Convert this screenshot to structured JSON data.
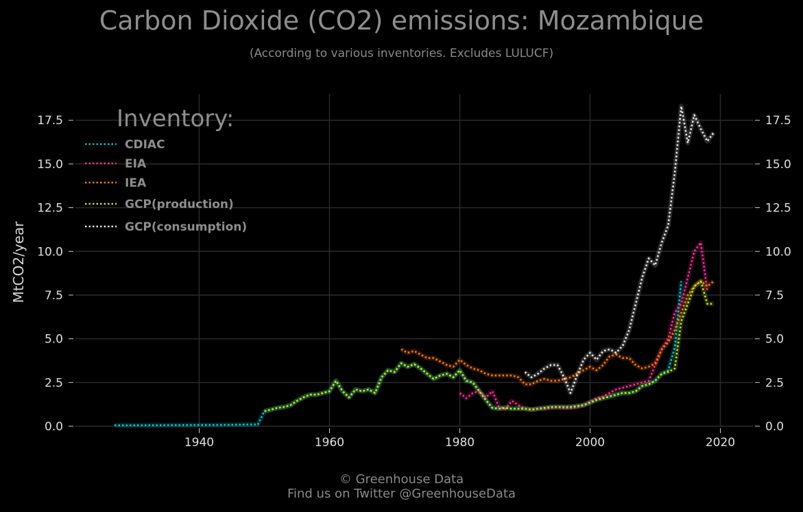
{
  "chart_data": {
    "type": "line",
    "title": "Carbon Dioxide (CO2) emissions: Mozambique",
    "subtitle": "(According to various inventories. Excludes LULUCF)",
    "ylabel": "MtCO2/year",
    "xlabel": "",
    "xlim": [
      1921,
      2025
    ],
    "ylim": [
      0,
      19
    ],
    "x_ticks": [
      1940,
      1960,
      1980,
      2000,
      2020
    ],
    "y_ticks": [
      0,
      2.5,
      5,
      7.5,
      10,
      12.5,
      15,
      17.5
    ],
    "y_tick_labels": [
      "0.0",
      "2.5",
      "5.0",
      "7.5",
      "10.0",
      "12.5",
      "15.0",
      "17.5"
    ],
    "grid": true,
    "legend_title": "Inventory:",
    "legend_position": "top-left",
    "series": [
      {
        "name": "CDIAC",
        "color": "#00c8d2",
        "x": [
          1927,
          1930,
          1935,
          1940,
          1945,
          1948,
          1949,
          1950,
          1951,
          1952,
          1953,
          1954,
          1955,
          1956,
          1957,
          1958,
          1959,
          1960,
          1961,
          1962,
          1963,
          1964,
          1965,
          1966,
          1967,
          1968,
          1969,
          1970,
          1971,
          1972,
          1973,
          1974,
          1975,
          1976,
          1977,
          1978,
          1979,
          1980,
          1981,
          1982,
          1983,
          1984,
          1985,
          1986,
          1987,
          1988,
          1989,
          1990,
          1991,
          1992,
          1993,
          1994,
          1995,
          1996,
          1997,
          1998,
          1999,
          2000,
          2001,
          2002,
          2003,
          2004,
          2005,
          2006,
          2007,
          2008,
          2009,
          2010,
          2011,
          2012,
          2013,
          2014
        ],
        "y": [
          0.05,
          0.05,
          0.06,
          0.07,
          0.08,
          0.1,
          0.1,
          0.85,
          0.95,
          1.05,
          1.1,
          1.2,
          1.45,
          1.65,
          1.8,
          1.8,
          1.9,
          2.0,
          2.6,
          2.0,
          1.65,
          2.1,
          2.0,
          2.1,
          1.9,
          2.8,
          3.2,
          3.1,
          3.6,
          3.4,
          3.55,
          3.3,
          3.0,
          2.7,
          2.9,
          3.0,
          2.8,
          3.2,
          2.6,
          2.5,
          2.0,
          1.5,
          1.05,
          1.0,
          1.05,
          1.0,
          1.0,
          1.0,
          0.95,
          1.0,
          1.05,
          1.1,
          1.1,
          1.1,
          1.1,
          1.15,
          1.2,
          1.35,
          1.5,
          1.6,
          1.7,
          1.8,
          1.9,
          1.9,
          2.0,
          2.3,
          2.4,
          2.6,
          3.0,
          3.2,
          4.5,
          8.3
        ]
      },
      {
        "name": "EIA",
        "color": "#ff2d9a",
        "x": [
          1980,
          1981,
          1982,
          1983,
          1984,
          1985,
          1986,
          1987,
          1988,
          1989,
          1990,
          1991,
          1992,
          1993,
          1994,
          1995,
          1996,
          1997,
          1998,
          1999,
          2000,
          2001,
          2002,
          2003,
          2004,
          2005,
          2006,
          2007,
          2008,
          2009,
          2010,
          2011,
          2012,
          2013,
          2014,
          2015,
          2016,
          2017,
          2018
        ],
        "y": [
          1.9,
          1.6,
          1.9,
          2.0,
          1.65,
          2.0,
          1.1,
          1.0,
          1.45,
          1.2,
          1.0,
          0.95,
          1.0,
          1.0,
          1.05,
          1.1,
          1.05,
          1.05,
          1.1,
          1.2,
          1.4,
          1.6,
          1.7,
          1.9,
          2.1,
          2.2,
          2.3,
          2.4,
          2.5,
          2.6,
          3.5,
          4.4,
          5.0,
          6.5,
          7.0,
          8.5,
          10.0,
          10.5,
          7.7
        ]
      },
      {
        "name": "IEA",
        "color": "#ff7a00",
        "x": [
          1971,
          1972,
          1973,
          1974,
          1975,
          1976,
          1977,
          1978,
          1979,
          1980,
          1981,
          1982,
          1983,
          1984,
          1985,
          1986,
          1987,
          1988,
          1989,
          1990,
          1991,
          1992,
          1993,
          1994,
          1995,
          1996,
          1997,
          1998,
          1999,
          2000,
          2001,
          2002,
          2003,
          2004,
          2005,
          2006,
          2007,
          2008,
          2009,
          2010,
          2011,
          2012,
          2013,
          2014,
          2015,
          2016,
          2017,
          2018,
          2019
        ],
        "y": [
          4.4,
          4.2,
          4.3,
          4.1,
          3.9,
          3.9,
          3.7,
          3.5,
          3.4,
          3.8,
          3.5,
          3.3,
          3.2,
          3.0,
          2.9,
          2.9,
          2.9,
          2.9,
          2.8,
          2.4,
          2.4,
          2.6,
          2.7,
          2.6,
          2.6,
          2.7,
          2.8,
          3.0,
          3.2,
          3.4,
          3.2,
          3.5,
          4.0,
          4.1,
          3.9,
          3.9,
          3.5,
          3.3,
          3.4,
          3.6,
          4.4,
          4.8,
          5.5,
          6.5,
          7.5,
          8.0,
          8.3,
          8.0,
          8.3
        ]
      },
      {
        "name": "GCP(production)",
        "color": "#b8e61a",
        "x": [
          1950,
          1951,
          1952,
          1953,
          1954,
          1955,
          1956,
          1957,
          1958,
          1959,
          1960,
          1961,
          1962,
          1963,
          1964,
          1965,
          1966,
          1967,
          1968,
          1969,
          1970,
          1971,
          1972,
          1973,
          1974,
          1975,
          1976,
          1977,
          1978,
          1979,
          1980,
          1981,
          1982,
          1983,
          1984,
          1985,
          1986,
          1987,
          1988,
          1989,
          1990,
          1991,
          1992,
          1993,
          1994,
          1995,
          1996,
          1997,
          1998,
          1999,
          2000,
          2001,
          2002,
          2003,
          2004,
          2005,
          2006,
          2007,
          2008,
          2009,
          2010,
          2011,
          2012,
          2013,
          2014,
          2015,
          2016,
          2017,
          2018,
          2019
        ],
        "y": [
          0.85,
          0.95,
          1.05,
          1.1,
          1.2,
          1.45,
          1.65,
          1.8,
          1.8,
          1.9,
          2.0,
          2.6,
          2.0,
          1.65,
          2.1,
          2.0,
          2.1,
          1.9,
          2.8,
          3.2,
          3.1,
          3.6,
          3.4,
          3.55,
          3.3,
          3.0,
          2.7,
          2.9,
          3.0,
          2.8,
          3.2,
          2.6,
          2.5,
          2.0,
          1.5,
          1.05,
          1.0,
          1.05,
          1.0,
          1.0,
          1.0,
          0.95,
          1.0,
          1.05,
          1.1,
          1.1,
          1.1,
          1.1,
          1.15,
          1.2,
          1.35,
          1.5,
          1.6,
          1.7,
          1.8,
          1.9,
          1.9,
          2.0,
          2.3,
          2.4,
          2.6,
          3.0,
          3.1,
          3.3,
          6.0,
          7.0,
          8.0,
          8.3,
          7.0,
          7.0
        ]
      },
      {
        "name": "GCP(consumption)",
        "color": "#e6e6e6",
        "x": [
          1990,
          1991,
          1992,
          1993,
          1994,
          1995,
          1996,
          1997,
          1998,
          1999,
          2000,
          2001,
          2002,
          2003,
          2004,
          2005,
          2006,
          2007,
          2008,
          2009,
          2010,
          2011,
          2012,
          2013,
          2014,
          2015,
          2016,
          2017,
          2018,
          2019
        ],
        "y": [
          3.1,
          2.8,
          3.0,
          3.3,
          3.5,
          3.5,
          2.8,
          1.9,
          2.9,
          3.8,
          4.2,
          3.8,
          4.3,
          4.4,
          4.2,
          4.6,
          5.5,
          7.0,
          8.5,
          9.6,
          9.2,
          10.5,
          11.5,
          14.5,
          18.3,
          16.2,
          17.8,
          17.0,
          16.3,
          16.8
        ]
      }
    ]
  },
  "footer": {
    "line1": "© Greenhouse Data",
    "line2": "Find us on Twitter @GreenhouseData"
  }
}
